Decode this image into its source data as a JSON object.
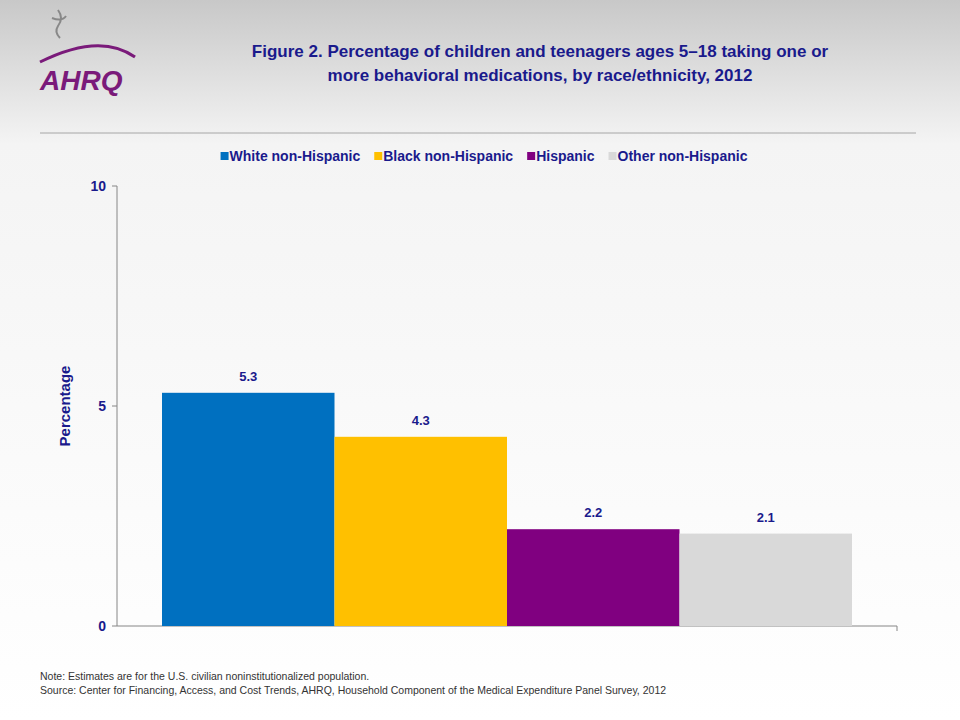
{
  "chart_data": {
    "type": "bar",
    "title": "Figure 2. Percentage of children and teenagers ages 5–18 taking one or more behavioral medications, by race/ethnicity, 2012",
    "logo": "AHRQ",
    "y_label": "Percentage",
    "categories": [
      "White non-Hispanic",
      "Black non-Hispanic",
      "Hispanic",
      "Other non-Hispanic"
    ],
    "values": [
      5.3,
      4.3,
      2.2,
      2.1
    ],
    "colors": [
      "#0070c0",
      "#ffc000",
      "#800080",
      "#d9d9d9"
    ],
    "ylim": [
      0,
      10
    ],
    "yticks": [
      0,
      5,
      10
    ],
    "grid": false,
    "legend": "top",
    "data_labels": true,
    "tick_labels": "y",
    "annotations": [
      "Note: Estimates are for the U.S. civilian noninstitutionalized population.",
      "Source: Center for Financing, Access, and Cost Trends, AHRQ, Household Component of the Medical Expenditure Panel Survey,  2012"
    ]
  }
}
